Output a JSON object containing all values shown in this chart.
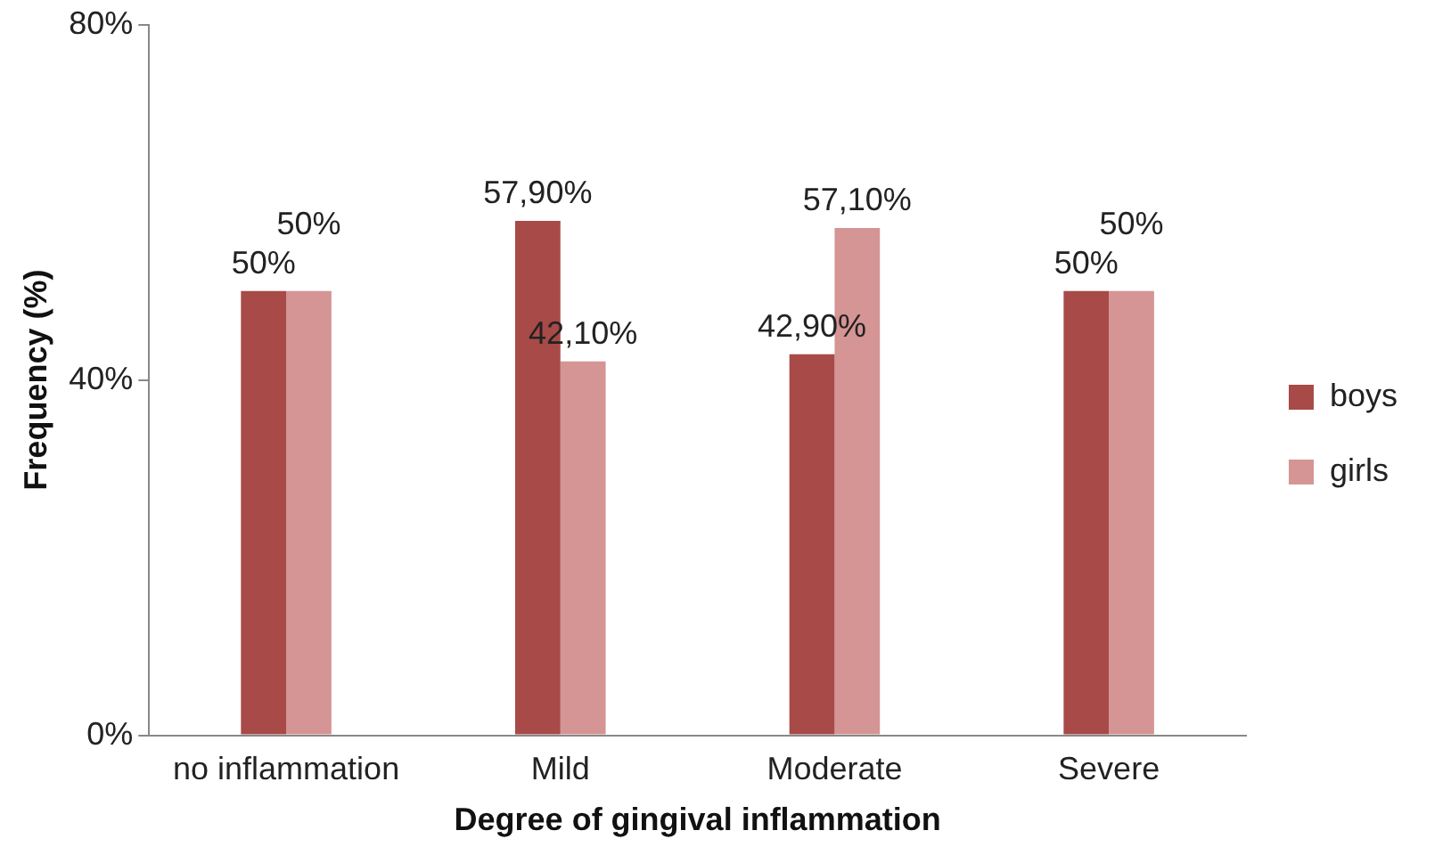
{
  "chart_data": {
    "type": "bar",
    "xlabel": "Degree of gingival inflammation",
    "ylabel": "Frequency (%)",
    "categories": [
      "no inflammation",
      "Mild",
      "Moderate",
      "Severe"
    ],
    "series": [
      {
        "name": "boys",
        "color": "#a84a48",
        "values": [
          50,
          57.9,
          42.9,
          50
        ],
        "value_labels": [
          "50%",
          "57,90%",
          "42,90%",
          "50%"
        ]
      },
      {
        "name": "girls",
        "color": "#d49594",
        "values": [
          50,
          42.1,
          57.1,
          50
        ],
        "value_labels": [
          "50%",
          "42,10%",
          "57,10%",
          "50%"
        ]
      }
    ],
    "ylim": [
      0,
      80
    ],
    "yticks": [
      {
        "value": 0,
        "label": "0%"
      },
      {
        "value": 40,
        "label": "40%"
      },
      {
        "value": 80,
        "label": "80%"
      }
    ],
    "grid": false,
    "legend": "right"
  }
}
